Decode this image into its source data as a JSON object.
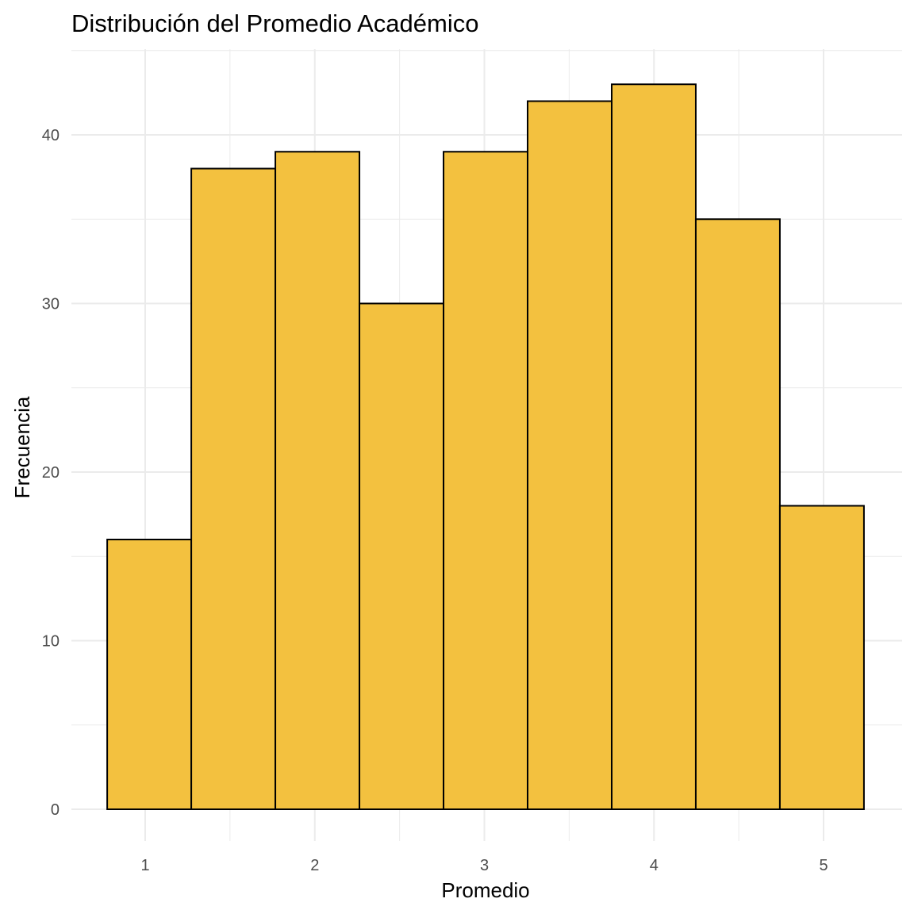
{
  "chart_data": {
    "type": "bar",
    "subtype": "histogram",
    "title": "Distribución del Promedio Académico",
    "xlabel": "Promedio",
    "ylabel": "Frecuencia",
    "bin_start": 0.776,
    "bin_width": 0.4958,
    "values": [
      16,
      38,
      39,
      30,
      39,
      42,
      43,
      35,
      18
    ],
    "xlim": [
      0.56,
      5.46
    ],
    "ylim": [
      0,
      45.9
    ],
    "x_ticks": [
      1,
      2,
      3,
      4,
      5
    ],
    "x_tick_labels": [
      "1",
      "2",
      "3",
      "4",
      "5"
    ],
    "y_ticks": [
      0,
      10,
      20,
      30,
      40
    ],
    "y_tick_labels": [
      "0",
      "10",
      "20",
      "30",
      "40"
    ],
    "grid": true,
    "fill_color": "#F3C13F",
    "outline_color": "#000000",
    "grid_color": "#EBEBEB"
  }
}
